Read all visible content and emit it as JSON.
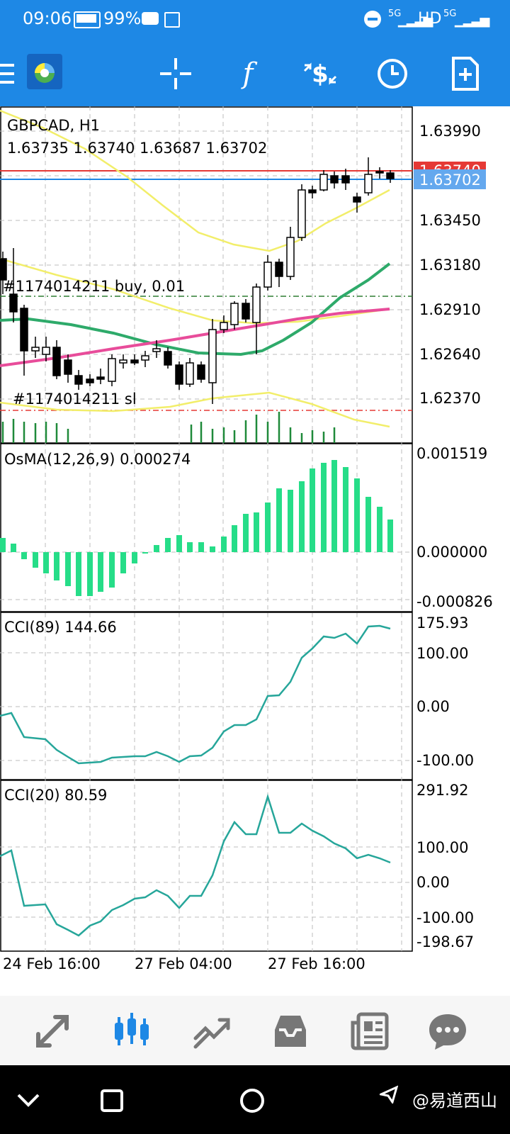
{
  "status_bar": {
    "time": "09:06",
    "battery": "99%",
    "network": "5G",
    "hd": "HD"
  },
  "toolbar": {
    "icons": [
      "menu-icon",
      "metatrader-logo",
      "crosshair-icon",
      "function-icon",
      "trade-icon",
      "timeframe-icon",
      "add-object-icon"
    ]
  },
  "chart": {
    "symbol_label": "GBPCAD, H1",
    "ohlc_label": "1.63735 1.63740 1.63687 1.63702",
    "price_ticks": [
      "1.63990",
      "1.63450",
      "1.63180",
      "1.62910",
      "1.62640",
      "1.62370"
    ],
    "ask_badge": "1.63740",
    "bid_badge": "1.63702",
    "order_label": "#1174014211 buy, 0.01",
    "sl_label": "#1174014211 sl",
    "colors": {
      "ask_line": "#e53935",
      "bid_line": "#1e88e5",
      "bull_body": "#ffffff",
      "bear_body": "#000000",
      "ma_yellow": "#f2ee6a",
      "ma_green": "#2eaa6a",
      "ma_pink": "#e84c9a",
      "osma": "#26dd88",
      "cci": "#26a69a",
      "volume": "#1f8a3a"
    },
    "date_labels": [
      "24 Feb 16:00",
      "27 Feb 04:00",
      "27 Feb 16:00"
    ]
  },
  "osma": {
    "label": "OsMA(12,26,9) 0.000274",
    "ticks": [
      "0.001519",
      "0.000000",
      "-0.000826"
    ]
  },
  "cci89": {
    "label": "CCI(89) 144.66",
    "ticks": [
      "175.93",
      "100.00",
      "0.00",
      "-100.00"
    ]
  },
  "cci20": {
    "label": "CCI(20) 80.59",
    "ticks": [
      "291.92",
      "100.00",
      "0.00",
      "-100.00",
      "-198.67"
    ]
  },
  "bottom_nav": {
    "items": [
      "quotes-icon",
      "chart-icon",
      "trade-icon",
      "history-icon",
      "news-icon",
      "messages-icon"
    ],
    "active": "chart-icon"
  },
  "watermark": "@易道西山"
}
